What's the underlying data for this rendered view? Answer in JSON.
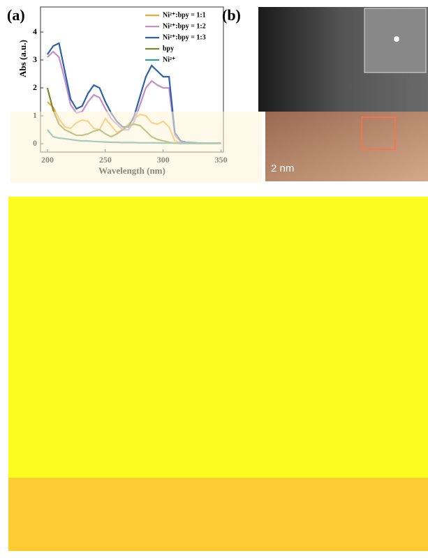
{
  "panels": {
    "a": "(a)",
    "b": "(b)",
    "scale_bar": "2 nm"
  },
  "chart_data": {
    "type": "line",
    "xlabel": "Wavelength (nm)",
    "ylabel": "Abs (a.u.)",
    "x": [
      200,
      205,
      210,
      215,
      220,
      225,
      230,
      235,
      240,
      245,
      250,
      255,
      260,
      265,
      270,
      275,
      280,
      285,
      290,
      295,
      300,
      305,
      310,
      315,
      320,
      330,
      340,
      350
    ],
    "series": [
      {
        "name": "Ni²⁺:bpy = 1:1",
        "color": "#f0aa35",
        "values": [
          1.5,
          1.3,
          0.9,
          0.6,
          0.55,
          0.75,
          0.85,
          0.8,
          0.55,
          0.5,
          0.9,
          0.65,
          0.4,
          0.5,
          0.7,
          0.9,
          1.05,
          1.0,
          0.75,
          0.7,
          0.8,
          0.6,
          0.1,
          0.03,
          0.02,
          0.02,
          0.02,
          0.02
        ]
      },
      {
        "name": "Ni²⁺:bpy = 1:2",
        "color": "#c58fc8",
        "values": [
          3.1,
          3.3,
          3.1,
          2.3,
          1.4,
          1.1,
          1.15,
          1.5,
          1.75,
          1.65,
          1.25,
          0.9,
          0.7,
          0.5,
          0.5,
          0.8,
          1.4,
          2.0,
          2.25,
          2.1,
          2.0,
          2.0,
          0.3,
          0.08,
          0.04,
          0.02,
          0.02,
          0.02
        ]
      },
      {
        "name": "Ni²⁺:bpy = 1:3",
        "color": "#2e62a8",
        "values": [
          3.2,
          3.5,
          3.6,
          2.6,
          1.6,
          1.25,
          1.35,
          1.8,
          2.1,
          2.0,
          1.5,
          1.1,
          0.8,
          0.6,
          0.6,
          1.0,
          1.7,
          2.4,
          2.8,
          2.6,
          2.4,
          2.4,
          0.4,
          0.1,
          0.05,
          0.03,
          0.02,
          0.02
        ]
      },
      {
        "name": "bpy",
        "color": "#7a8a2a",
        "values": [
          2.0,
          1.2,
          0.7,
          0.5,
          0.4,
          0.3,
          0.3,
          0.35,
          0.45,
          0.5,
          0.35,
          0.25,
          0.35,
          0.5,
          0.65,
          0.7,
          0.65,
          0.45,
          0.25,
          0.15,
          0.1,
          0.05,
          0.02,
          0.01,
          0.01,
          0.01,
          0.01,
          0.01
        ]
      },
      {
        "name": "Ni²⁺",
        "color": "#3a9a9a",
        "values": [
          0.5,
          0.25,
          0.2,
          0.18,
          0.15,
          0.12,
          0.1,
          0.1,
          0.08,
          0.07,
          0.06,
          0.05,
          0.05,
          0.04,
          0.04,
          0.04,
          0.03,
          0.03,
          0.03,
          0.03,
          0.02,
          0.02,
          0.02,
          0.02,
          0.02,
          0.02,
          0.02,
          0.02
        ]
      }
    ],
    "xlim": [
      194,
      352
    ],
    "ylim": [
      -0.3,
      4.9
    ],
    "xticks": [
      200,
      250,
      300,
      350
    ],
    "yticks": [
      0,
      1,
      2,
      3,
      4
    ],
    "legend": "upper right"
  }
}
